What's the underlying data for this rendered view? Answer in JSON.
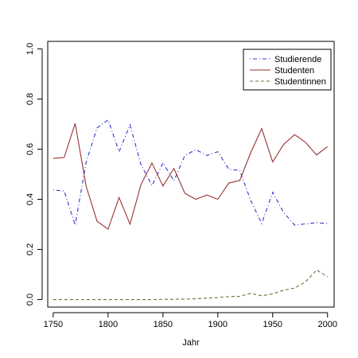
{
  "chart_data": {
    "type": "line",
    "title": "",
    "xlabel": "Jahr",
    "ylabel": "",
    "xlim": [
      1745,
      2006
    ],
    "ylim": [
      -0.03,
      1.03
    ],
    "xticks": [
      "1750",
      "1800",
      "1850",
      "1900",
      "1950",
      "2000"
    ],
    "yticks": [
      "0.0",
      "0.2",
      "0.4",
      "0.6",
      "0.8",
      "1.0"
    ],
    "legend_position": "top-right",
    "grid": false,
    "x": [
      1750,
      1760,
      1770,
      1780,
      1790,
      1800,
      1810,
      1820,
      1830,
      1840,
      1850,
      1860,
      1870,
      1880,
      1890,
      1900,
      1910,
      1920,
      1930,
      1940,
      1950,
      1960,
      1970,
      1980,
      1990,
      2000
    ],
    "series": [
      {
        "name": "Studierende",
        "color": "#3333cc",
        "dash": "dotdash",
        "values": [
          0.437,
          0.433,
          0.297,
          0.548,
          0.685,
          0.717,
          0.59,
          0.697,
          0.538,
          0.455,
          0.545,
          0.474,
          0.575,
          0.598,
          0.575,
          0.59,
          0.52,
          0.515,
          0.395,
          0.303,
          0.428,
          0.347,
          0.297,
          0.302,
          0.307,
          0.303
        ]
      },
      {
        "name": "Studenten",
        "color": "#993333",
        "dash": "solid",
        "values": [
          0.563,
          0.567,
          0.703,
          0.452,
          0.312,
          0.281,
          0.407,
          0.301,
          0.459,
          0.545,
          0.453,
          0.523,
          0.424,
          0.4,
          0.417,
          0.4,
          0.465,
          0.475,
          0.586,
          0.682,
          0.549,
          0.619,
          0.658,
          0.627,
          0.577,
          0.61
        ]
      },
      {
        "name": "Studentinnen",
        "color": "#667733",
        "dash": "dashed",
        "values": [
          0.0,
          0.0,
          0.0,
          0.0,
          0.0,
          0.0,
          0.0,
          0.0,
          0.0,
          0.0,
          0.001,
          0.001,
          0.002,
          0.003,
          0.006,
          0.008,
          0.012,
          0.013,
          0.025,
          0.015,
          0.023,
          0.037,
          0.046,
          0.071,
          0.118,
          0.091
        ]
      }
    ]
  }
}
